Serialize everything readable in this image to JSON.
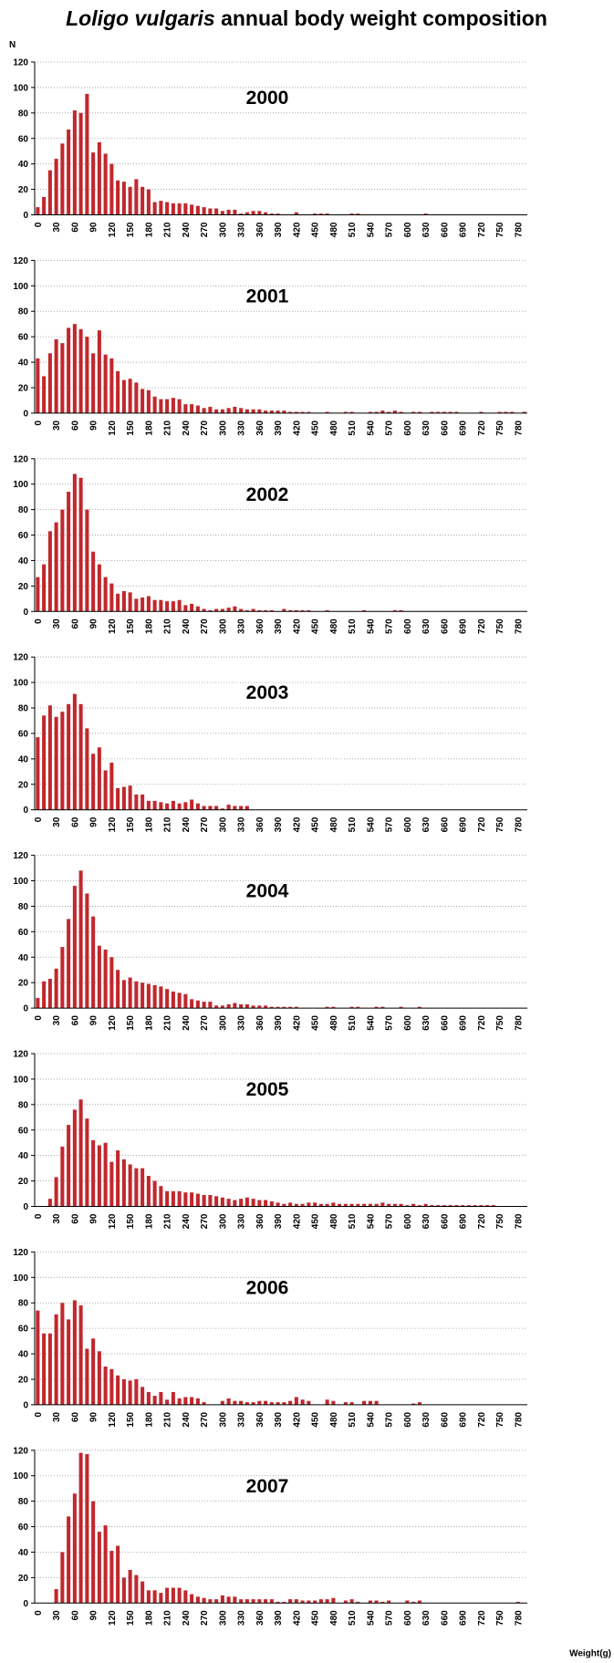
{
  "title": {
    "species": "Loligo vulgaris",
    "text": "annual body weight composition"
  },
  "chart_data": [
    {
      "type": "bar",
      "title": "2000",
      "y_label": "N",
      "color": "#c0282d",
      "ylim": [
        0,
        120
      ],
      "yticks": [
        0,
        20,
        40,
        60,
        80,
        100,
        120
      ],
      "grid": true,
      "categories": [
        0,
        null,
        null,
        30,
        null,
        null,
        60,
        null,
        null,
        90,
        null,
        null,
        120,
        null,
        null,
        150,
        null,
        null,
        180,
        null,
        null,
        210,
        null,
        null,
        240,
        null,
        null,
        270,
        null,
        null,
        300,
        null,
        null,
        330,
        null,
        null,
        360,
        null,
        null,
        390,
        null,
        null,
        420,
        null,
        null,
        450,
        null,
        null,
        480,
        null,
        null,
        510,
        null,
        null,
        540,
        null,
        null,
        570,
        null,
        null,
        600,
        null,
        null,
        630,
        null,
        null,
        660,
        null,
        null,
        690,
        null,
        null,
        720,
        null,
        null,
        750,
        null,
        null,
        780,
        null
      ],
      "values": [
        6,
        14,
        35,
        44,
        56,
        67,
        82,
        80,
        95,
        49,
        57,
        48,
        40,
        27,
        26,
        22,
        28,
        22,
        20,
        10,
        11,
        10,
        9,
        9,
        9,
        8,
        7,
        6,
        5,
        5,
        3,
        4,
        4,
        1,
        2,
        3,
        3,
        2,
        1,
        1,
        0,
        0,
        2,
        0,
        0,
        1,
        1,
        1,
        0,
        0,
        0,
        1,
        1,
        0,
        0,
        0,
        0,
        0,
        0,
        0,
        0,
        0,
        0,
        1,
        0,
        0,
        0,
        0,
        0,
        0,
        0,
        0,
        0,
        0,
        0,
        0,
        0,
        0,
        0,
        0
      ]
    },
    {
      "type": "bar",
      "title": "2001",
      "color": "#c0282d",
      "ylim": [
        0,
        120
      ],
      "yticks": [
        0,
        20,
        40,
        60,
        80,
        100,
        120
      ],
      "grid": true,
      "categories": [
        0,
        null,
        null,
        30,
        null,
        null,
        60,
        null,
        null,
        90,
        null,
        null,
        120,
        null,
        null,
        150,
        null,
        null,
        180,
        null,
        null,
        210,
        null,
        null,
        240,
        null,
        null,
        270,
        null,
        null,
        300,
        null,
        null,
        330,
        null,
        null,
        360,
        null,
        null,
        390,
        null,
        null,
        420,
        null,
        null,
        450,
        null,
        null,
        480,
        null,
        null,
        510,
        null,
        null,
        540,
        null,
        null,
        570,
        null,
        null,
        600,
        null,
        null,
        630,
        null,
        null,
        660,
        null,
        null,
        690,
        null,
        null,
        720,
        null,
        null,
        750,
        null,
        null,
        780,
        null
      ],
      "values": [
        43,
        29,
        47,
        58,
        55,
        67,
        70,
        66,
        60,
        47,
        65,
        46,
        43,
        33,
        26,
        27,
        24,
        19,
        18,
        13,
        11,
        11,
        12,
        11,
        7,
        7,
        6,
        4,
        5,
        3,
        3,
        4,
        5,
        4,
        3,
        3,
        3,
        2,
        2,
        2,
        2,
        1,
        1,
        1,
        1,
        0,
        0,
        1,
        0,
        0,
        1,
        1,
        0,
        0,
        1,
        1,
        2,
        1,
        2,
        1,
        0,
        1,
        1,
        0,
        1,
        1,
        1,
        1,
        1,
        0,
        0,
        0,
        1,
        0,
        0,
        1,
        1,
        1,
        0,
        1
      ]
    },
    {
      "type": "bar",
      "title": "2002",
      "color": "#c0282d",
      "ylim": [
        0,
        120
      ],
      "yticks": [
        0,
        20,
        40,
        60,
        80,
        100,
        120
      ],
      "grid": true,
      "categories": [
        0,
        null,
        null,
        30,
        null,
        null,
        60,
        null,
        null,
        90,
        null,
        null,
        120,
        null,
        null,
        150,
        null,
        null,
        180,
        null,
        null,
        210,
        null,
        null,
        240,
        null,
        null,
        270,
        null,
        null,
        300,
        null,
        null,
        330,
        null,
        null,
        360,
        null,
        null,
        390,
        null,
        null,
        420,
        null,
        null,
        450,
        null,
        null,
        480,
        null,
        null,
        510,
        null,
        null,
        540,
        null,
        null,
        570,
        null,
        null,
        600,
        null,
        null,
        630,
        null,
        null,
        660,
        null,
        null,
        690,
        null,
        null,
        720,
        null,
        null,
        750,
        null,
        null,
        780,
        null
      ],
      "values": [
        27,
        37,
        63,
        70,
        80,
        94,
        108,
        105,
        80,
        47,
        37,
        27,
        22,
        14,
        16,
        15,
        10,
        11,
        12,
        9,
        9,
        8,
        8,
        9,
        5,
        6,
        4,
        2,
        1,
        2,
        2,
        3,
        4,
        2,
        1,
        2,
        1,
        1,
        1,
        0,
        2,
        1,
        1,
        1,
        1,
        0,
        0,
        1,
        0,
        0,
        0,
        0,
        0,
        1,
        0,
        0,
        0,
        0,
        1,
        1,
        0,
        0,
        0,
        0,
        0,
        0,
        0,
        0,
        0,
        0,
        0,
        0,
        0,
        0,
        0,
        0,
        0,
        0,
        0,
        0
      ]
    },
    {
      "type": "bar",
      "title": "2003",
      "color": "#c0282d",
      "ylim": [
        0,
        120
      ],
      "yticks": [
        0,
        20,
        40,
        60,
        80,
        100,
        120
      ],
      "grid": true,
      "categories": [
        0,
        null,
        null,
        30,
        null,
        null,
        60,
        null,
        null,
        90,
        null,
        null,
        120,
        null,
        null,
        150,
        null,
        null,
        180,
        null,
        null,
        210,
        null,
        null,
        240,
        null,
        null,
        270,
        null,
        null,
        300,
        null,
        null,
        330,
        null,
        null,
        360,
        null,
        null,
        390,
        null,
        null,
        420,
        null,
        null,
        450,
        null,
        null,
        480,
        null,
        null,
        510,
        null,
        null,
        540,
        null,
        null,
        570,
        null,
        null,
        600,
        null,
        null,
        630,
        null,
        null,
        660,
        null,
        null,
        690,
        null,
        null,
        720,
        null,
        null,
        750,
        null,
        null,
        780,
        null
      ],
      "values": [
        57,
        74,
        82,
        73,
        77,
        83,
        91,
        83,
        64,
        44,
        49,
        31,
        37,
        17,
        18,
        19,
        12,
        12,
        7,
        7,
        6,
        5,
        7,
        5,
        6,
        8,
        5,
        3,
        3,
        3,
        1,
        4,
        3,
        3,
        3,
        0,
        0,
        0,
        0,
        0,
        0,
        0,
        0,
        0,
        0,
        0,
        0,
        0,
        0,
        0,
        0,
        0,
        0,
        0,
        0,
        0,
        0,
        0,
        0,
        0,
        0,
        0,
        0,
        0,
        0,
        0,
        0,
        0,
        0,
        0,
        0,
        0,
        0,
        0,
        0,
        0,
        0,
        0,
        0,
        0
      ]
    },
    {
      "type": "bar",
      "title": "2004",
      "color": "#c0282d",
      "ylim": [
        0,
        120
      ],
      "yticks": [
        0,
        20,
        40,
        60,
        80,
        100,
        120
      ],
      "grid": true,
      "categories": [
        0,
        null,
        null,
        30,
        null,
        null,
        60,
        null,
        null,
        90,
        null,
        null,
        120,
        null,
        null,
        150,
        null,
        null,
        180,
        null,
        null,
        210,
        null,
        null,
        240,
        null,
        null,
        270,
        null,
        null,
        300,
        null,
        null,
        330,
        null,
        null,
        360,
        null,
        null,
        390,
        null,
        null,
        420,
        null,
        null,
        450,
        null,
        null,
        480,
        null,
        null,
        510,
        null,
        null,
        540,
        null,
        null,
        570,
        null,
        null,
        600,
        null,
        null,
        630,
        null,
        null,
        660,
        null,
        null,
        690,
        null,
        null,
        720,
        null,
        null,
        750,
        null,
        null,
        780,
        null
      ],
      "values": [
        8,
        21,
        23,
        31,
        48,
        70,
        96,
        108,
        90,
        72,
        49,
        46,
        40,
        30,
        22,
        24,
        21,
        20,
        19,
        18,
        17,
        15,
        13,
        12,
        11,
        7,
        6,
        5,
        5,
        2,
        2,
        3,
        4,
        3,
        3,
        2,
        2,
        2,
        1,
        1,
        1,
        1,
        1,
        0,
        0,
        0,
        0,
        1,
        1,
        0,
        0,
        1,
        1,
        0,
        0,
        1,
        1,
        0,
        0,
        1,
        0,
        0,
        1,
        0,
        0,
        0,
        0,
        0,
        0,
        0,
        0,
        0,
        0,
        0,
        0,
        0,
        0,
        0,
        0,
        0
      ]
    },
    {
      "type": "bar",
      "title": "2005",
      "color": "#c0282d",
      "ylim": [
        0,
        120
      ],
      "yticks": [
        0,
        20,
        40,
        60,
        80,
        100,
        120
      ],
      "grid": true,
      "categories": [
        0,
        null,
        null,
        30,
        null,
        null,
        60,
        null,
        null,
        90,
        null,
        null,
        120,
        null,
        null,
        150,
        null,
        null,
        180,
        null,
        null,
        210,
        null,
        null,
        240,
        null,
        null,
        270,
        null,
        null,
        300,
        null,
        null,
        330,
        null,
        null,
        360,
        null,
        null,
        390,
        null,
        null,
        420,
        null,
        null,
        450,
        null,
        null,
        480,
        null,
        null,
        510,
        null,
        null,
        540,
        null,
        null,
        570,
        null,
        null,
        600,
        null,
        null,
        630,
        null,
        null,
        660,
        null,
        null,
        690,
        null,
        null,
        720,
        null,
        null,
        750,
        null,
        null,
        780,
        null
      ],
      "values": [
        0,
        0,
        6,
        23,
        47,
        64,
        76,
        84,
        69,
        52,
        48,
        50,
        35,
        44,
        37,
        33,
        30,
        30,
        24,
        20,
        16,
        12,
        12,
        12,
        11,
        11,
        10,
        9,
        9,
        8,
        7,
        6,
        5,
        6,
        7,
        6,
        5,
        5,
        4,
        3,
        2,
        3,
        2,
        2,
        3,
        3,
        2,
        2,
        3,
        2,
        2,
        2,
        2,
        2,
        2,
        2,
        3,
        2,
        2,
        2,
        1,
        2,
        1,
        2,
        1,
        1,
        1,
        1,
        1,
        1,
        1,
        1,
        1,
        1,
        1,
        0,
        0,
        0,
        0,
        0
      ]
    },
    {
      "type": "bar",
      "title": "2006",
      "color": "#c0282d",
      "ylim": [
        0,
        120
      ],
      "yticks": [
        0,
        20,
        40,
        60,
        80,
        100,
        120
      ],
      "grid": true,
      "categories": [
        0,
        null,
        null,
        30,
        null,
        null,
        60,
        null,
        null,
        90,
        null,
        null,
        120,
        null,
        null,
        150,
        null,
        null,
        180,
        null,
        null,
        210,
        null,
        null,
        240,
        null,
        null,
        270,
        null,
        null,
        300,
        null,
        null,
        330,
        null,
        null,
        360,
        null,
        null,
        390,
        null,
        null,
        420,
        null,
        null,
        450,
        null,
        null,
        480,
        null,
        null,
        510,
        null,
        null,
        540,
        null,
        null,
        570,
        null,
        null,
        600,
        null,
        null,
        630,
        null,
        null,
        660,
        null,
        null,
        690,
        null,
        null,
        720,
        null,
        null,
        750,
        null,
        null,
        780,
        null
      ],
      "values": [
        74,
        56,
        56,
        71,
        80,
        67,
        82,
        78,
        44,
        52,
        42,
        30,
        28,
        23,
        20,
        19,
        20,
        14,
        10,
        7,
        10,
        4,
        10,
        5,
        6,
        6,
        5,
        2,
        0,
        0,
        3,
        5,
        3,
        3,
        2,
        2,
        3,
        3,
        2,
        2,
        2,
        3,
        6,
        4,
        3,
        0,
        0,
        4,
        3,
        0,
        2,
        2,
        0,
        3,
        3,
        3,
        0,
        0,
        0,
        0,
        0,
        1,
        2,
        0,
        0,
        0,
        0,
        0,
        0,
        0,
        0,
        0,
        0,
        0,
        0,
        0,
        0,
        0,
        0,
        0
      ]
    },
    {
      "type": "bar",
      "title": "2007",
      "x_label": "Weight(g)",
      "color": "#c0282d",
      "ylim": [
        0,
        120
      ],
      "yticks": [
        0,
        20,
        40,
        60,
        80,
        100,
        120
      ],
      "grid": true,
      "categories": [
        0,
        null,
        null,
        30,
        null,
        null,
        60,
        null,
        null,
        90,
        null,
        null,
        120,
        null,
        null,
        150,
        null,
        null,
        180,
        null,
        null,
        210,
        null,
        null,
        240,
        null,
        null,
        270,
        null,
        null,
        300,
        null,
        null,
        330,
        null,
        null,
        360,
        null,
        null,
        390,
        null,
        null,
        420,
        null,
        null,
        450,
        null,
        null,
        480,
        null,
        null,
        510,
        null,
        null,
        540,
        null,
        null,
        570,
        null,
        null,
        600,
        null,
        null,
        630,
        null,
        null,
        660,
        null,
        null,
        690,
        null,
        null,
        720,
        null,
        null,
        750,
        null,
        null,
        780,
        null
      ],
      "values": [
        0,
        0,
        0,
        11,
        40,
        68,
        86,
        118,
        117,
        80,
        56,
        61,
        41,
        45,
        20,
        26,
        22,
        17,
        10,
        10,
        8,
        12,
        12,
        12,
        10,
        7,
        5,
        4,
        3,
        3,
        6,
        5,
        5,
        3,
        3,
        3,
        3,
        3,
        3,
        1,
        1,
        3,
        3,
        2,
        2,
        2,
        3,
        3,
        4,
        0,
        2,
        3,
        1,
        0,
        2,
        2,
        1,
        2,
        0,
        0,
        2,
        1,
        2,
        0,
        0,
        0,
        0,
        0,
        0,
        0,
        0,
        0,
        0,
        0,
        0,
        0,
        0,
        0,
        1,
        0
      ]
    }
  ]
}
